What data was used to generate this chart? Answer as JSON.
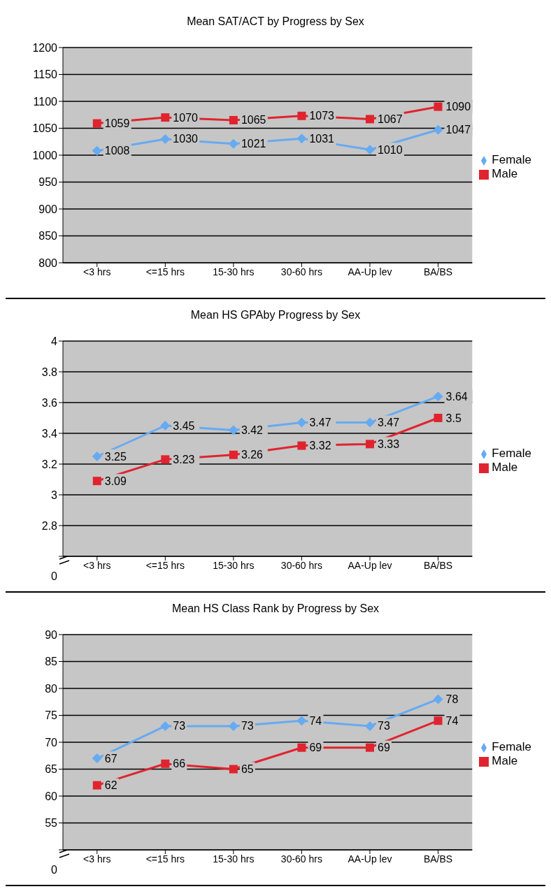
{
  "chart_data": [
    {
      "type": "line",
      "title": "Mean SAT/ACT by Progress by Sex",
      "categories": [
        "<3 hrs",
        "<=15 hrs",
        "15-30 hrs",
        "30-60 hrs",
        "AA-Up lev",
        "BA/BS"
      ],
      "series": [
        {
          "name": "Female",
          "color": "#66aaf2",
          "marker": "diamond",
          "values": [
            1008,
            1030,
            1021,
            1031,
            1010,
            1047
          ]
        },
        {
          "name": "Male",
          "color": "#e0242f",
          "marker": "square",
          "values": [
            1059,
            1070,
            1065,
            1073,
            1067,
            1090
          ]
        }
      ],
      "ylim": [
        800,
        1200
      ],
      "yticks": [
        800,
        850,
        900,
        950,
        1000,
        1050,
        1100,
        1150,
        1200
      ],
      "grid": "y",
      "legend": "right",
      "data_labels": true
    },
    {
      "type": "line",
      "title": "Mean HS GPAby Progress by Sex",
      "categories": [
        "<3 hrs",
        "<=15 hrs",
        "15-30 hrs",
        "30-60 hrs",
        "AA-Up lev",
        "BA/BS"
      ],
      "series": [
        {
          "name": "Female",
          "color": "#66aaf2",
          "marker": "diamond",
          "values": [
            3.25,
            3.45,
            3.42,
            3.47,
            3.47,
            3.64
          ]
        },
        {
          "name": "Male",
          "color": "#e0242f",
          "marker": "square",
          "values": [
            3.09,
            3.23,
            3.26,
            3.32,
            3.33,
            3.5
          ]
        }
      ],
      "ylim": [
        2.6,
        4
      ],
      "yticks": [
        {
          "value": 2.6,
          "label": null
        },
        2.8,
        3,
        3.2,
        3.4,
        3.6,
        3.8,
        4
      ],
      "annotations": [
        "0"
      ],
      "grid": "y",
      "legend": "right",
      "data_labels": true
    },
    {
      "type": "line",
      "title": "Mean HS Class Rank by Progress by Sex",
      "categories": [
        "<3 hrs",
        "<=15 hrs",
        "15-30 hrs",
        "30-60 hrs",
        "AA-Up lev",
        "BA/BS"
      ],
      "series": [
        {
          "name": "Female",
          "color": "#66aaf2",
          "marker": "diamond",
          "values": [
            67,
            73,
            73,
            74,
            73,
            78
          ]
        },
        {
          "name": "Male",
          "color": "#e0242f",
          "marker": "square",
          "values": [
            62,
            66,
            65,
            69,
            69,
            74
          ]
        }
      ],
      "ylim": [
        50,
        90
      ],
      "yticks": [
        {
          "value": 50,
          "label": null
        },
        55,
        60,
        65,
        70,
        75,
        80,
        85,
        90
      ],
      "annotations": [
        "0"
      ],
      "grid": "y",
      "legend": "right",
      "data_labels": true
    }
  ]
}
